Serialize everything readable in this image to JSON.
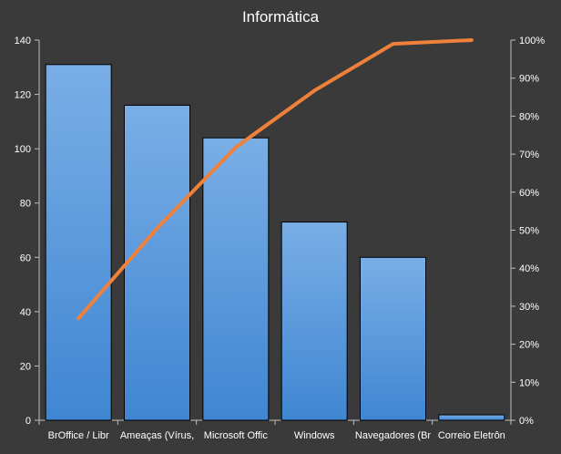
{
  "chart_data": {
    "type": "bar",
    "title": "Informática",
    "categories": [
      "BrOffice / Libr",
      "Ameaças (Vírus,",
      "Microsoft Offic",
      "Windows",
      "Navegadores (Br",
      "Correio Eletrôn"
    ],
    "series": [
      {
        "values": [
          131,
          116,
          104,
          73,
          60,
          2
        ],
        "axis": "left",
        "kind": "bar",
        "color": "#4a8fd8"
      },
      {
        "values": [
          26.8,
          50.5,
          71.8,
          86.7,
          99.0,
          100.0
        ],
        "axis": "right",
        "kind": "line",
        "unit": "%",
        "color": "#f0813a"
      }
    ],
    "ylim": [
      0,
      140
    ],
    "yticks": [
      0,
      20,
      40,
      60,
      80,
      100,
      120,
      140
    ],
    "y2lim": [
      0,
      100
    ],
    "y2ticks": [
      "0%",
      "10%",
      "20%",
      "30%",
      "40%",
      "50%",
      "60%",
      "70%",
      "80%",
      "90%",
      "100%"
    ],
    "grid": false,
    "legend": "none"
  },
  "colors": {
    "background": "#3a3a3a",
    "axis": "#bfbfbf",
    "bar_edge": "#000000",
    "line": "#f0813a"
  }
}
